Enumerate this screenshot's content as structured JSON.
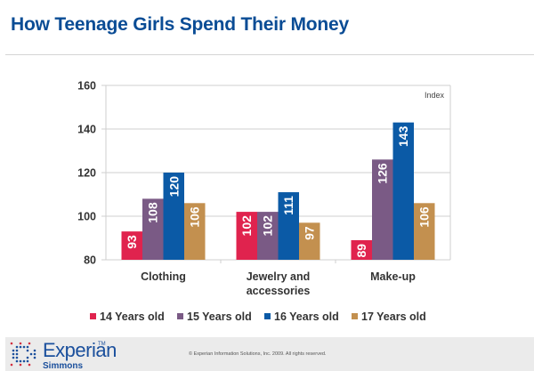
{
  "header": {
    "title": "How Teenage Girls Spend Their Money"
  },
  "chart_data": {
    "type": "bar",
    "title": "How Teenage Girls Spend Their Money",
    "xlabel": "",
    "ylabel": "Index",
    "corner_label": "Index",
    "categories": [
      "Clothing",
      "Jewelry and accessories",
      "Make-up"
    ],
    "category_lines": [
      [
        "Clothing"
      ],
      [
        "Jewelry and",
        "accessories"
      ],
      [
        "Make-up"
      ]
    ],
    "series": [
      {
        "name": "14 Years old",
        "color": "#e0234e",
        "values": [
          93,
          102,
          89
        ]
      },
      {
        "name": "15 Years old",
        "color": "#7a5a85",
        "values": [
          108,
          102,
          126
        ]
      },
      {
        "name": "16 Years old",
        "color": "#0b5aa6",
        "values": [
          120,
          111,
          143
        ]
      },
      {
        "name": "17 Years old",
        "color": "#c3904f",
        "values": [
          106,
          97,
          106
        ]
      }
    ],
    "ylim": [
      80,
      160
    ],
    "yticks": [
      80,
      100,
      120,
      140,
      160
    ],
    "grid": true,
    "legend_position": "bottom",
    "data_labels": true
  },
  "footer": {
    "logo_word": "Experian",
    "logo_tm": "TM",
    "logo_sub": "Simmons",
    "copyright": "© Experian Information Solutions, Inc. 2009.  All rights reserved."
  }
}
